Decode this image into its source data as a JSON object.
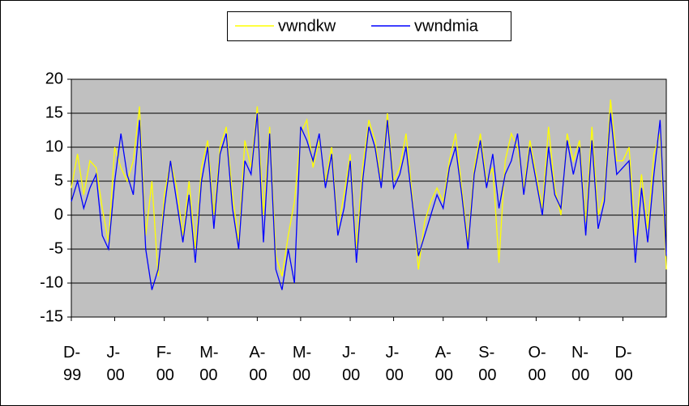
{
  "chart_data": {
    "type": "line",
    "categories": [
      "D-99",
      null,
      null,
      null,
      null,
      null,
      null,
      "J-00",
      null,
      null,
      null,
      null,
      null,
      null,
      null,
      "F-00",
      null,
      null,
      null,
      null,
      null,
      null,
      "M-00",
      null,
      null,
      null,
      null,
      null,
      null,
      null,
      "A-00",
      null,
      null,
      null,
      null,
      null,
      null,
      "M-00",
      null,
      null,
      null,
      null,
      null,
      null,
      null,
      "J-00",
      null,
      null,
      null,
      null,
      null,
      null,
      "J-00",
      null,
      null,
      null,
      null,
      null,
      null,
      null,
      "A-00",
      null,
      null,
      null,
      null,
      null,
      null,
      "S-00",
      null,
      null,
      null,
      null,
      null,
      null,
      null,
      "O-00",
      null,
      null,
      null,
      null,
      null,
      null,
      "N-00",
      null,
      null,
      null,
      null,
      null,
      null,
      "D-00",
      null,
      null,
      null,
      null,
      null,
      null,
      null
    ],
    "series": [
      {
        "name": "vwndkw",
        "color": "#ffff00",
        "values": [
          4,
          9,
          3,
          8,
          7,
          1,
          -4,
          10,
          7,
          5,
          8,
          16,
          -3,
          5,
          -9,
          3,
          8,
          4,
          -3,
          5,
          -5,
          7,
          11,
          0,
          10,
          13,
          3,
          -4,
          11,
          7,
          16,
          0,
          13,
          -6,
          -9,
          -3,
          2,
          12,
          14,
          7,
          11,
          5,
          10,
          -2,
          3,
          9,
          -5,
          7,
          14,
          11,
          5,
          15,
          5,
          7,
          12,
          3,
          -8,
          -1,
          2,
          4,
          2,
          8,
          12,
          4,
          -4,
          7,
          12,
          5,
          7,
          -7,
          8,
          12,
          10,
          4,
          11,
          6,
          1,
          13,
          4,
          0,
          12,
          8,
          11,
          -1,
          13,
          0,
          3,
          17,
          8,
          8,
          10,
          -3,
          6,
          -2,
          9,
          12,
          -8
        ]
      },
      {
        "name": "vwndmia",
        "color": "#0000ff",
        "values": [
          2,
          5,
          1,
          4,
          6,
          -3,
          -5,
          5,
          12,
          6,
          3,
          14,
          -5,
          -11,
          -8,
          1,
          8,
          2,
          -4,
          3,
          -7,
          5,
          10,
          -2,
          9,
          12,
          1,
          -5,
          8,
          6,
          15,
          -4,
          12,
          -8,
          -11,
          -5,
          -10,
          13,
          11,
          8,
          12,
          4,
          9,
          -3,
          1,
          8,
          -7,
          5,
          13,
          10,
          4,
          14,
          4,
          6,
          10,
          2,
          -6,
          -3,
          0,
          3,
          1,
          7,
          10,
          3,
          -5,
          6,
          11,
          4,
          9,
          1,
          6,
          8,
          12,
          3,
          10,
          5,
          0,
          10,
          3,
          1,
          11,
          6,
          10,
          -3,
          11,
          -2,
          2,
          15,
          6,
          7,
          8,
          -7,
          4,
          -4,
          6,
          14,
          -6
        ]
      }
    ],
    "ylim": [
      -15,
      20
    ],
    "yticks": [
      -15,
      -10,
      -5,
      0,
      5,
      10,
      15,
      20
    ],
    "grid": true,
    "legend": "top",
    "plot_background": "#c0c0c0"
  }
}
